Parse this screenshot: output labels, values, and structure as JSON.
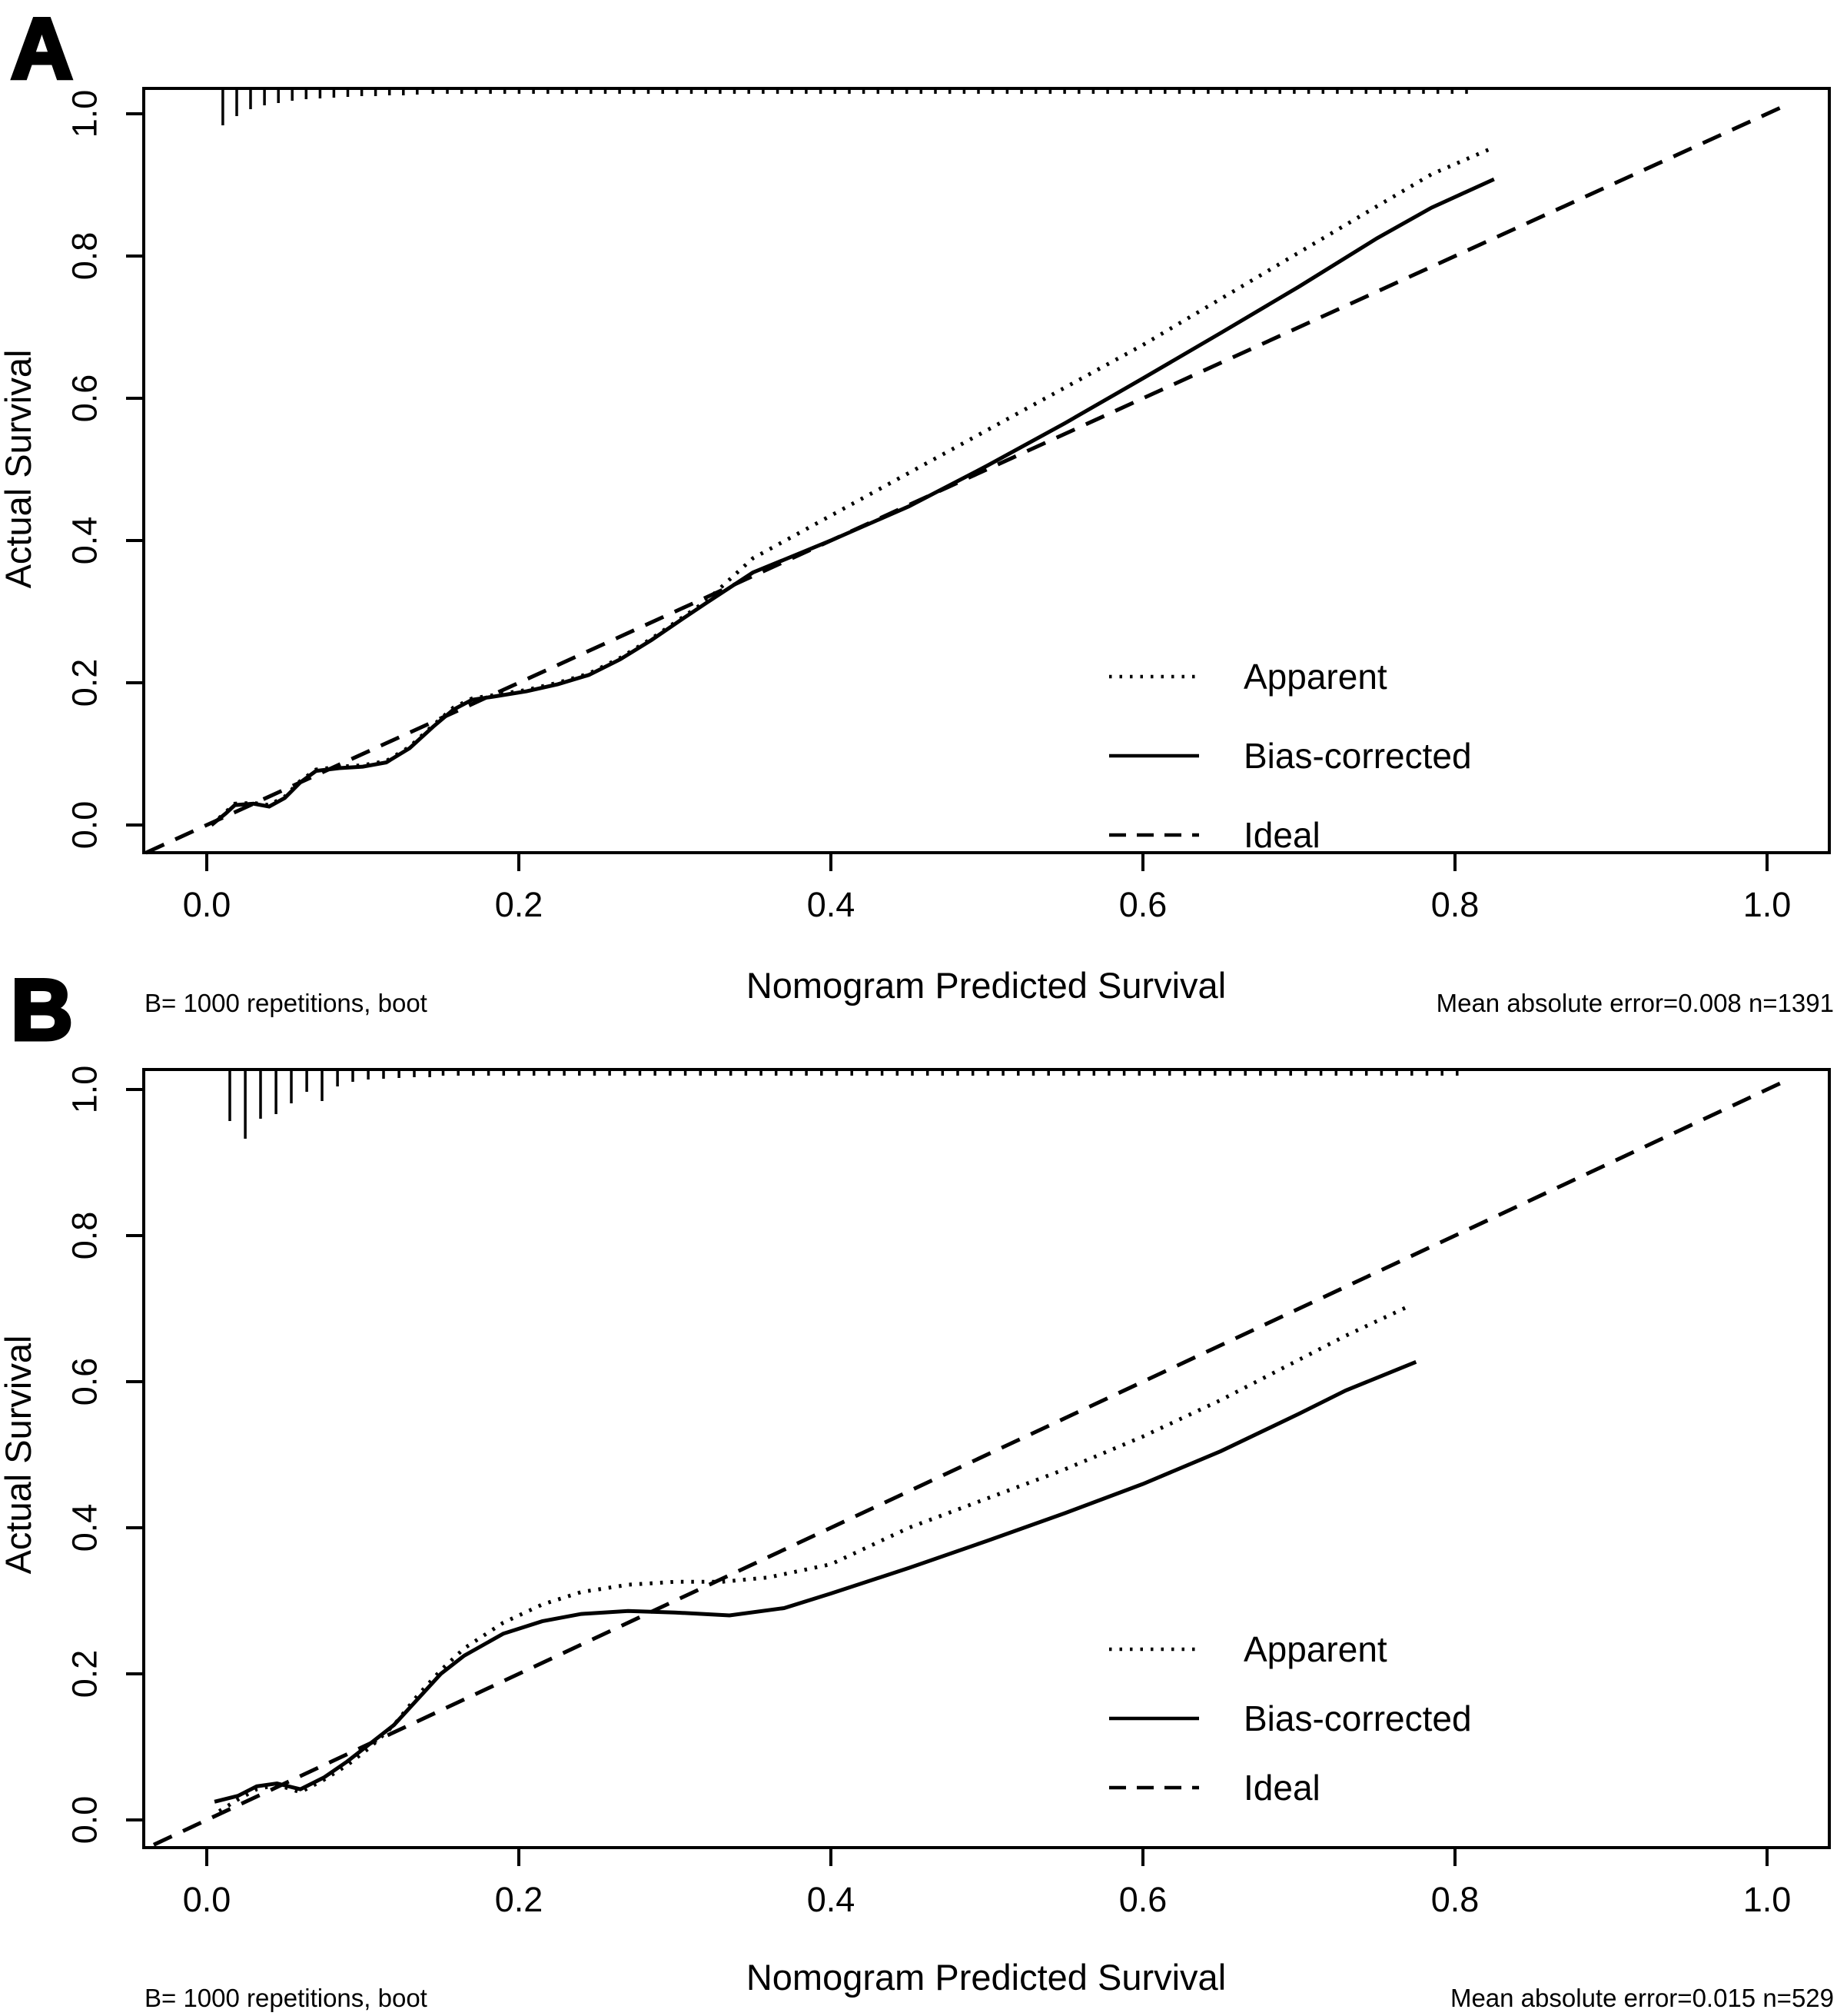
{
  "figure": {
    "background_color": "#ffffff",
    "line_color": "#000000",
    "description": "Two-panel nomogram calibration plot"
  },
  "chart_data": [
    {
      "panel_label": "A",
      "type": "line",
      "xlabel": "Nomogram Predicted Survival",
      "ylabel": "Actual Survival",
      "xlim": [
        -0.04,
        1.04
      ],
      "ylim": [
        -0.04,
        1.04
      ],
      "grid": false,
      "legend_position": "right-center",
      "x_ticks": [
        0,
        0.2,
        0.4,
        0.6,
        0.8,
        1
      ],
      "tick_labels": [
        "0.0",
        "0.2",
        "0.4",
        "0.6",
        "0.8",
        "1.0"
      ],
      "legend": [
        "Apparent",
        "Bias-corrected",
        "Ideal"
      ],
      "footnote_left": "B= 1000 repetitions, boot",
      "footnote_right": "Mean absolute error=0.008 n=1391",
      "series": [
        {
          "name": "Apparent",
          "style": "dotted",
          "x": [
            0.003,
            0.012,
            0.018,
            0.03,
            0.04,
            0.05,
            0.06,
            0.07,
            0.085,
            0.1,
            0.115,
            0.13,
            0.145,
            0.158,
            0.17,
            0.185,
            0.205,
            0.225,
            0.245,
            0.265,
            0.285,
            0.305,
            0.32,
            0.35,
            0.4,
            0.45,
            0.5,
            0.55,
            0.6,
            0.65,
            0.7,
            0.75,
            0.785,
            0.823
          ],
          "y": [
            0.0,
            0.018,
            0.03,
            0.031,
            0.028,
            0.04,
            0.062,
            0.078,
            0.082,
            0.084,
            0.09,
            0.11,
            0.14,
            0.165,
            0.178,
            0.183,
            0.19,
            0.2,
            0.213,
            0.235,
            0.262,
            0.292,
            0.315,
            0.375,
            0.435,
            0.495,
            0.555,
            0.615,
            0.675,
            0.74,
            0.805,
            0.87,
            0.915,
            0.951
          ]
        },
        {
          "name": "Bias-corrected",
          "style": "solid",
          "x": [
            0.003,
            0.012,
            0.018,
            0.03,
            0.04,
            0.05,
            0.06,
            0.07,
            0.085,
            0.1,
            0.115,
            0.13,
            0.145,
            0.158,
            0.17,
            0.185,
            0.205,
            0.225,
            0.245,
            0.265,
            0.285,
            0.305,
            0.32,
            0.35,
            0.4,
            0.45,
            0.5,
            0.55,
            0.6,
            0.65,
            0.7,
            0.75,
            0.785,
            0.825
          ],
          "y": [
            0.0,
            0.016,
            0.028,
            0.03,
            0.026,
            0.038,
            0.06,
            0.076,
            0.08,
            0.082,
            0.088,
            0.108,
            0.138,
            0.162,
            0.176,
            0.181,
            0.188,
            0.198,
            0.211,
            0.233,
            0.26,
            0.29,
            0.312,
            0.355,
            0.4,
            0.448,
            0.505,
            0.565,
            0.628,
            0.692,
            0.757,
            0.825,
            0.868,
            0.908
          ]
        },
        {
          "name": "Ideal",
          "style": "dashed",
          "x": [
            -0.039,
            1.01
          ],
          "y": [
            -0.039,
            1.01
          ]
        }
      ],
      "rug": {
        "head": [
          [
            0.0103,
            48
          ],
          [
            0.0192,
            36
          ],
          [
            0.0281,
            27
          ],
          [
            0.037,
            22
          ],
          [
            0.0459,
            19
          ],
          [
            0.0548,
            16
          ],
          [
            0.0637,
            14
          ],
          [
            0.0726,
            13
          ],
          [
            0.0815,
            12
          ],
          [
            0.0904,
            11
          ],
          [
            0.0993,
            10
          ],
          [
            0.1082,
            10
          ],
          [
            0.1171,
            9
          ],
          [
            0.126,
            9
          ],
          [
            0.1349,
            8
          ]
        ],
        "fill": {
          "from": 0.145,
          "to": 0.815,
          "step": 0.0092,
          "len": 7
        }
      }
    },
    {
      "panel_label": "B",
      "type": "line",
      "xlabel": "Nomogram Predicted Survival",
      "ylabel": "Actual Survival",
      "xlim": [
        -0.04,
        1.04
      ],
      "ylim": [
        -0.04,
        1.04
      ],
      "grid": false,
      "legend_position": "right-center",
      "x_ticks": [
        0,
        0.2,
        0.4,
        0.6,
        0.8,
        1
      ],
      "tick_labels": [
        "0.0",
        "0.2",
        "0.4",
        "0.6",
        "0.8",
        "1.0"
      ],
      "legend": [
        "Apparent",
        "Bias-corrected",
        "Ideal"
      ],
      "footnote_left": "B= 1000 repetitions, boot",
      "footnote_right": "Mean absolute error=0.015 n=529",
      "series": [
        {
          "name": "Apparent",
          "style": "dotted",
          "x": [
            0.008,
            0.02,
            0.032,
            0.045,
            0.06,
            0.075,
            0.09,
            0.105,
            0.12,
            0.135,
            0.15,
            0.165,
            0.19,
            0.215,
            0.24,
            0.27,
            0.3,
            0.33,
            0.36,
            0.4,
            0.45,
            0.5,
            0.55,
            0.6,
            0.65,
            0.7,
            0.73,
            0.772
          ],
          "y": [
            0.012,
            0.028,
            0.042,
            0.048,
            0.038,
            0.055,
            0.075,
            0.1,
            0.13,
            0.17,
            0.205,
            0.235,
            0.27,
            0.295,
            0.312,
            0.322,
            0.326,
            0.326,
            0.332,
            0.35,
            0.4,
            0.44,
            0.48,
            0.525,
            0.575,
            0.63,
            0.663,
            0.705
          ]
        },
        {
          "name": "Bias-corrected",
          "style": "solid",
          "x": [
            0.005,
            0.02,
            0.032,
            0.045,
            0.06,
            0.075,
            0.09,
            0.105,
            0.12,
            0.135,
            0.15,
            0.165,
            0.19,
            0.215,
            0.24,
            0.27,
            0.3,
            0.335,
            0.37,
            0.4,
            0.45,
            0.5,
            0.55,
            0.6,
            0.65,
            0.7,
            0.73,
            0.775
          ],
          "y": [
            0.025,
            0.033,
            0.046,
            0.05,
            0.042,
            0.058,
            0.08,
            0.105,
            0.13,
            0.165,
            0.2,
            0.225,
            0.255,
            0.272,
            0.282,
            0.286,
            0.284,
            0.28,
            0.29,
            0.31,
            0.345,
            0.382,
            0.42,
            0.46,
            0.505,
            0.556,
            0.588,
            0.627
          ]
        },
        {
          "name": "Ideal",
          "style": "dashed",
          "x": [
            -0.034,
            1.01
          ],
          "y": [
            -0.034,
            1.01
          ]
        }
      ],
      "rug": {
        "head": [
          [
            0.0148,
            67
          ],
          [
            0.0247,
            90
          ],
          [
            0.0345,
            64
          ],
          [
            0.0444,
            58
          ],
          [
            0.0542,
            44
          ],
          [
            0.0641,
            29
          ],
          [
            0.0739,
            41
          ],
          [
            0.0838,
            22
          ],
          [
            0.0936,
            16
          ],
          [
            0.1035,
            13
          ],
          [
            0.1133,
            12
          ],
          [
            0.1232,
            11
          ],
          [
            0.133,
            10
          ],
          [
            0.1429,
            10
          ]
        ],
        "fill": {
          "from": 0.1515,
          "to": 0.805,
          "step": 0.0097,
          "len": 8
        }
      }
    }
  ]
}
